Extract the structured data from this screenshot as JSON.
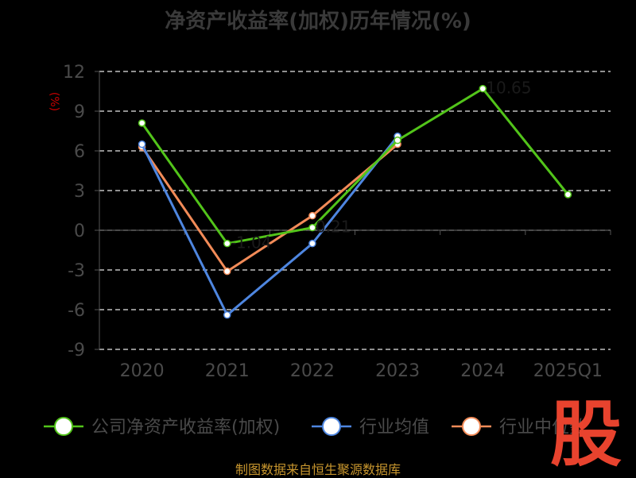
{
  "title": "净资产收益率(加权)历年情况(%)",
  "footer": "制图数据来自恒生聚源数据库",
  "watermark": "股",
  "chart_data": {
    "type": "line",
    "categories": [
      "2020",
      "2021",
      "2022",
      "2023",
      "2024",
      "2025Q1"
    ],
    "ylabel": "(%)",
    "ylim": [
      -9,
      12
    ],
    "yticks": [
      12,
      9,
      6,
      3,
      0,
      -3,
      -6,
      -9
    ],
    "grid": true,
    "legend_position": "bottom",
    "series": [
      {
        "name": "公司净资产收益率(加权)",
        "color": "#52c41a",
        "values": [
          8.1,
          -1.0,
          0.2,
          6.8,
          10.7,
          2.7
        ]
      },
      {
        "name": "行业均值",
        "color": "#4e86e0",
        "values": [
          6.5,
          -6.4,
          -1.0,
          7.1,
          null,
          null
        ]
      },
      {
        "name": "行业中位数",
        "color": "#f28b58",
        "values": [
          6.3,
          -3.1,
          1.1,
          6.5,
          null,
          null
        ]
      }
    ],
    "data_labels": {
      "series": 0,
      "values": [
        "",
        "-1.04",
        "0.21",
        "",
        "10.65",
        ""
      ]
    }
  }
}
